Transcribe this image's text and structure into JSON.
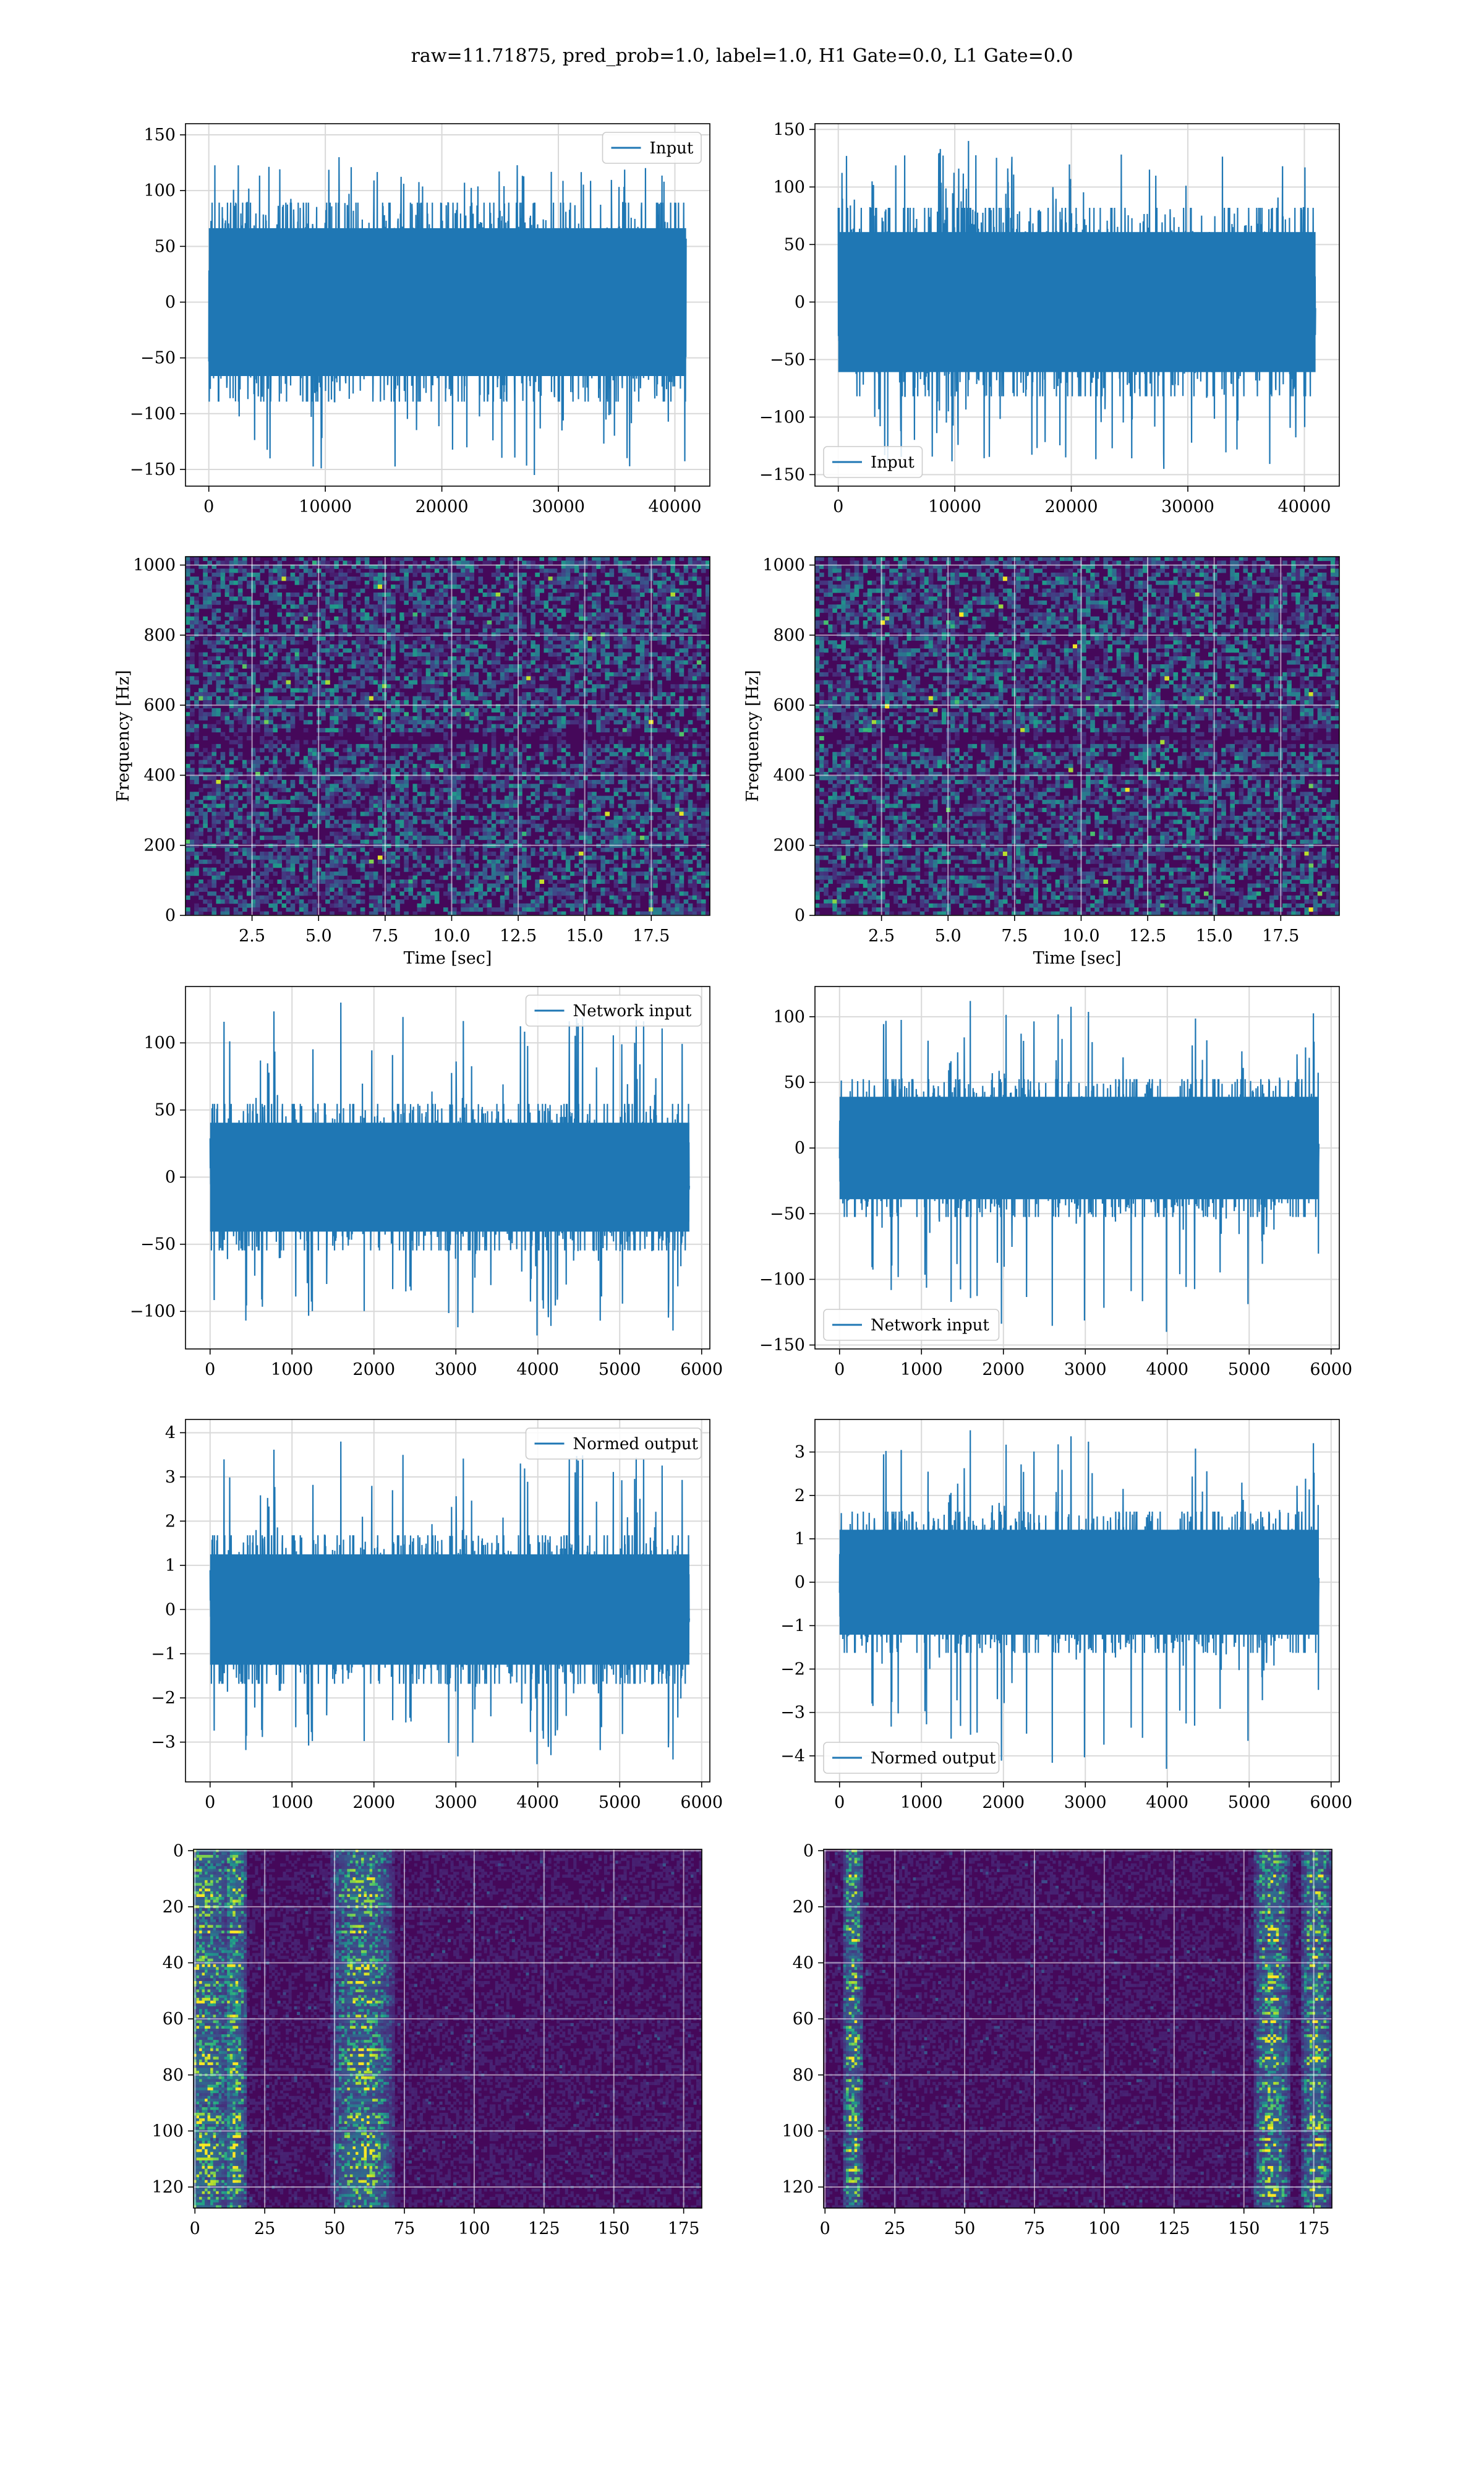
{
  "figure": {
    "suptitle": "raw=11.71875, pred_prob=1.0, label=1.0, H1 Gate=0.0, L1 Gate=0.0"
  },
  "colors": {
    "series": "#1f77b4",
    "grid": "#d9d9d9",
    "viridis_dark": "#440154",
    "viridis_mid": "#21918c",
    "viridis_light": "#5ec962",
    "viridis_bright": "#fde725"
  },
  "chart_data": [
    {
      "id": "h1-input",
      "type": "line",
      "kind": "signal",
      "legend": "Input",
      "legend_loc": "upper right",
      "xlim": [
        -2000,
        43000
      ],
      "ylim": [
        -165,
        160
      ],
      "xticks": [
        0,
        10000,
        20000,
        30000,
        40000
      ],
      "yticks": [
        -150,
        -100,
        -50,
        0,
        50,
        100,
        150
      ],
      "x_range": [
        0,
        40960
      ],
      "envelope": 85,
      "spike_max": 130,
      "spike_min": -155,
      "seed": 11,
      "xlabel": "",
      "ylabel": "",
      "grid": true
    },
    {
      "id": "l1-input",
      "type": "line",
      "kind": "signal",
      "legend": "Input",
      "legend_loc": "lower left",
      "xlim": [
        -2000,
        43000
      ],
      "ylim": [
        -160,
        155
      ],
      "xticks": [
        0,
        10000,
        20000,
        30000,
        40000
      ],
      "yticks": [
        -150,
        -100,
        -50,
        0,
        50,
        100,
        150
      ],
      "x_range": [
        0,
        40960
      ],
      "envelope": 78,
      "spike_max": 140,
      "spike_min": -145,
      "seed": 23,
      "xlabel": "",
      "ylabel": "",
      "grid": true
    },
    {
      "id": "h1-spectrogram",
      "type": "heatmap",
      "kind": "spectrogram",
      "xlim": [
        0,
        19.7
      ],
      "ylim": [
        0,
        1024
      ],
      "xticks": [
        2.5,
        5.0,
        7.5,
        10.0,
        12.5,
        15.0,
        17.5
      ],
      "xtick_labels": [
        "2.5",
        "5.0",
        "7.5",
        "10.0",
        "12.5",
        "15.0",
        "17.5"
      ],
      "yticks": [
        0,
        200,
        400,
        600,
        800,
        1000
      ],
      "xlabel": "Time [sec]",
      "ylabel": "Frequency [Hz]",
      "seed": 31,
      "grid": true
    },
    {
      "id": "l1-spectrogram",
      "type": "heatmap",
      "kind": "spectrogram",
      "xlim": [
        0,
        19.7
      ],
      "ylim": [
        0,
        1024
      ],
      "xticks": [
        2.5,
        5.0,
        7.5,
        10.0,
        12.5,
        15.0,
        17.5
      ],
      "xtick_labels": [
        "2.5",
        "5.0",
        "7.5",
        "10.0",
        "12.5",
        "15.0",
        "17.5"
      ],
      "yticks": [
        0,
        200,
        400,
        600,
        800,
        1000
      ],
      "xlabel": "Time [sec]",
      "ylabel": "Frequency [Hz]",
      "seed": 47,
      "grid": true
    },
    {
      "id": "h1-network-input",
      "type": "line",
      "kind": "signal",
      "legend": "Network input",
      "legend_loc": "upper right",
      "xlim": [
        -300,
        6100
      ],
      "ylim": [
        -128,
        142
      ],
      "xticks": [
        0,
        1000,
        2000,
        3000,
        4000,
        5000,
        6000
      ],
      "yticks": [
        -100,
        -50,
        0,
        50,
        100
      ],
      "x_range": [
        0,
        5850
      ],
      "envelope": 52,
      "spike_max": 130,
      "spike_min": -118,
      "seed": 53,
      "xlabel": "",
      "ylabel": "",
      "grid": true
    },
    {
      "id": "l1-network-input",
      "type": "line",
      "kind": "signal",
      "legend": "Network input",
      "legend_loc": "lower left",
      "xlim": [
        -300,
        6100
      ],
      "ylim": [
        -153,
        123
      ],
      "xticks": [
        0,
        1000,
        2000,
        3000,
        4000,
        5000,
        6000
      ],
      "yticks": [
        -150,
        -100,
        -50,
        0,
        50,
        100
      ],
      "x_range": [
        0,
        5850
      ],
      "envelope": 50,
      "spike_max": 112,
      "spike_min": -140,
      "seed": 61,
      "xlabel": "",
      "ylabel": "",
      "grid": true
    },
    {
      "id": "h1-normed-output",
      "type": "line",
      "kind": "signal",
      "legend": "Normed output",
      "legend_loc": "upper right",
      "xlim": [
        -300,
        6100
      ],
      "ylim": [
        -3.9,
        4.3
      ],
      "xticks": [
        0,
        1000,
        2000,
        3000,
        4000,
        5000,
        6000
      ],
      "yticks": [
        -3,
        -2,
        -1,
        0,
        1,
        2,
        3,
        4
      ],
      "x_range": [
        0,
        5850
      ],
      "envelope": 1.6,
      "spike_max": 3.8,
      "spike_min": -3.5,
      "seed": 53,
      "xlabel": "",
      "ylabel": "",
      "grid": true
    },
    {
      "id": "l1-normed-output",
      "type": "line",
      "kind": "signal",
      "legend": "Normed output",
      "legend_loc": "lower left",
      "xlim": [
        -300,
        6100
      ],
      "ylim": [
        -4.6,
        3.75
      ],
      "xticks": [
        0,
        1000,
        2000,
        3000,
        4000,
        5000,
        6000
      ],
      "yticks": [
        -4,
        -3,
        -2,
        -1,
        0,
        1,
        2,
        3
      ],
      "x_range": [
        0,
        5850
      ],
      "envelope": 1.55,
      "spike_max": 3.5,
      "spike_min": -4.3,
      "seed": 61,
      "xlabel": "",
      "ylabel": "",
      "grid": true
    },
    {
      "id": "h1-feature-map",
      "type": "heatmap",
      "kind": "featuremap",
      "xlim": [
        -0.5,
        181.5
      ],
      "ylim": [
        127.5,
        -0.5
      ],
      "y_inverted": true,
      "xticks": [
        0,
        25,
        50,
        75,
        100,
        125,
        150,
        175
      ],
      "yticks": [
        0,
        20,
        40,
        60,
        80,
        100,
        120
      ],
      "hot_columns": [
        [
          3,
          12
        ],
        [
          15,
          4
        ],
        [
          60,
          12
        ]
      ],
      "seed": 71,
      "xlabel": "",
      "ylabel": "",
      "grid": true
    },
    {
      "id": "l1-feature-map",
      "type": "heatmap",
      "kind": "featuremap",
      "xlim": [
        -0.5,
        181.5
      ],
      "ylim": [
        127.5,
        -0.5
      ],
      "y_inverted": true,
      "xticks": [
        0,
        25,
        50,
        75,
        100,
        125,
        150,
        175
      ],
      "yticks": [
        0,
        20,
        40,
        60,
        80,
        100,
        120
      ],
      "hot_columns": [
        [
          176,
          6
        ],
        [
          160,
          7
        ],
        [
          10,
          4
        ]
      ],
      "seed": 83,
      "xlabel": "",
      "ylabel": "",
      "grid": true
    }
  ]
}
